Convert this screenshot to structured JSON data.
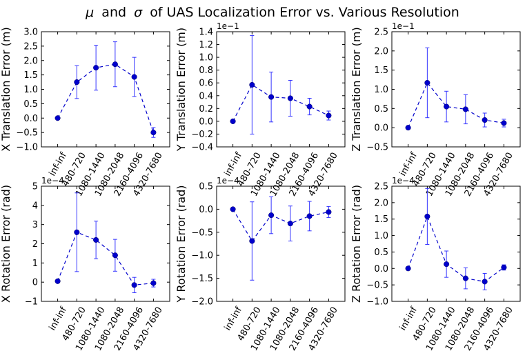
{
  "figure": {
    "title_mu": "μ",
    "title_and": "and",
    "title_sigma": "σ",
    "title_rest": "of UAS Localization Error vs. Various Resolution"
  },
  "colors": {
    "series": "#0000cc",
    "errorbar": "#3333ff",
    "axes": "#000000"
  },
  "chart_data": [
    {
      "type": "line",
      "ylabel": "X Translation Error (m)",
      "exponent": "",
      "ylim": [
        -1.0,
        3.0
      ],
      "yticks": [
        "−1.0",
        "−0.5",
        "0.0",
        "0.5",
        "1.0",
        "1.5",
        "2.0",
        "2.5",
        "3.0"
      ],
      "categories": [
        "inf-inf",
        "480-720",
        "1080-1440",
        "1080-2048",
        "2160-4096",
        "4320-7680"
      ],
      "values": [
        0.0,
        1.25,
        1.75,
        1.87,
        1.43,
        -0.5
      ],
      "errors": [
        0.0,
        0.57,
        0.78,
        0.78,
        0.68,
        0.17
      ]
    },
    {
      "type": "line",
      "ylabel": "Y Translation Error (m)",
      "exponent": "1e−1",
      "ylim": [
        -0.4,
        1.4
      ],
      "yticks": [
        "−0.4",
        "−0.2",
        "0.0",
        "0.2",
        "0.4",
        "0.6",
        "0.8",
        "1.0",
        "1.2",
        "1.4"
      ],
      "categories": [
        "inf-inf",
        "480-720",
        "1080-1440",
        "1080-2048",
        "2160-4096",
        "4320-7680"
      ],
      "values": [
        0.0,
        0.57,
        0.38,
        0.36,
        0.23,
        0.09
      ],
      "errors": [
        0.0,
        0.77,
        0.39,
        0.28,
        0.13,
        0.07
      ]
    },
    {
      "type": "line",
      "ylabel": "Z Translation Error (m)",
      "exponent": "1e−1",
      "ylim": [
        -0.5,
        2.5
      ],
      "yticks": [
        "−0.5",
        "0.0",
        "0.5",
        "1.0",
        "1.5",
        "2.0",
        "2.5"
      ],
      "categories": [
        "inf-inf",
        "480-720",
        "1080-1440",
        "1080-2048",
        "2160-4096",
        "4320-7680"
      ],
      "values": [
        0.0,
        1.17,
        0.55,
        0.48,
        0.2,
        0.12
      ],
      "errors": [
        0.0,
        0.91,
        0.4,
        0.38,
        0.18,
        0.1
      ]
    },
    {
      "type": "line",
      "ylabel": "X Rotation Error (rad)",
      "exponent": "1e−4",
      "ylim": [
        -1.0,
        5.0
      ],
      "yticks": [
        "−1",
        "0",
        "1",
        "2",
        "3",
        "4",
        "5"
      ],
      "categories": [
        "inf-inf",
        "480-720",
        "1080-1440",
        "1080-2048",
        "2160-4096",
        "4320-7680"
      ],
      "values": [
        0.05,
        2.6,
        2.2,
        1.4,
        -0.15,
        -0.05
      ],
      "errors": [
        0.0,
        2.05,
        0.98,
        0.83,
        0.4,
        0.2
      ]
    },
    {
      "type": "line",
      "ylabel": "Y Rotation Error (rad)",
      "exponent": "1e−4",
      "ylim": [
        -2.0,
        0.5
      ],
      "yticks": [
        "−2.0",
        "−1.5",
        "−1.0",
        "−0.5",
        "0.0",
        "0.5"
      ],
      "categories": [
        "inf-inf",
        "480-720",
        "1080-1440",
        "1080-2048",
        "2160-4096",
        "4320-7680"
      ],
      "values": [
        0.0,
        -0.69,
        -0.13,
        -0.31,
        -0.15,
        -0.06
      ],
      "errors": [
        0.0,
        0.85,
        0.4,
        0.38,
        0.32,
        0.12
      ]
    },
    {
      "type": "line",
      "ylabel": "Z Rotation Error (rad)",
      "exponent": "1e−4",
      "ylim": [
        -1.0,
        2.5
      ],
      "yticks": [
        "−1.0",
        "−0.5",
        "0.0",
        "0.5",
        "1.0",
        "1.5",
        "2.0",
        "2.5"
      ],
      "categories": [
        "inf-inf",
        "480-720",
        "1080-1440",
        "1080-2048",
        "2160-4096",
        "4320-7680"
      ],
      "values": [
        0.0,
        1.58,
        0.13,
        -0.3,
        -0.4,
        0.03
      ],
      "errors": [
        0.0,
        0.85,
        0.4,
        0.32,
        0.25,
        0.08
      ]
    }
  ]
}
